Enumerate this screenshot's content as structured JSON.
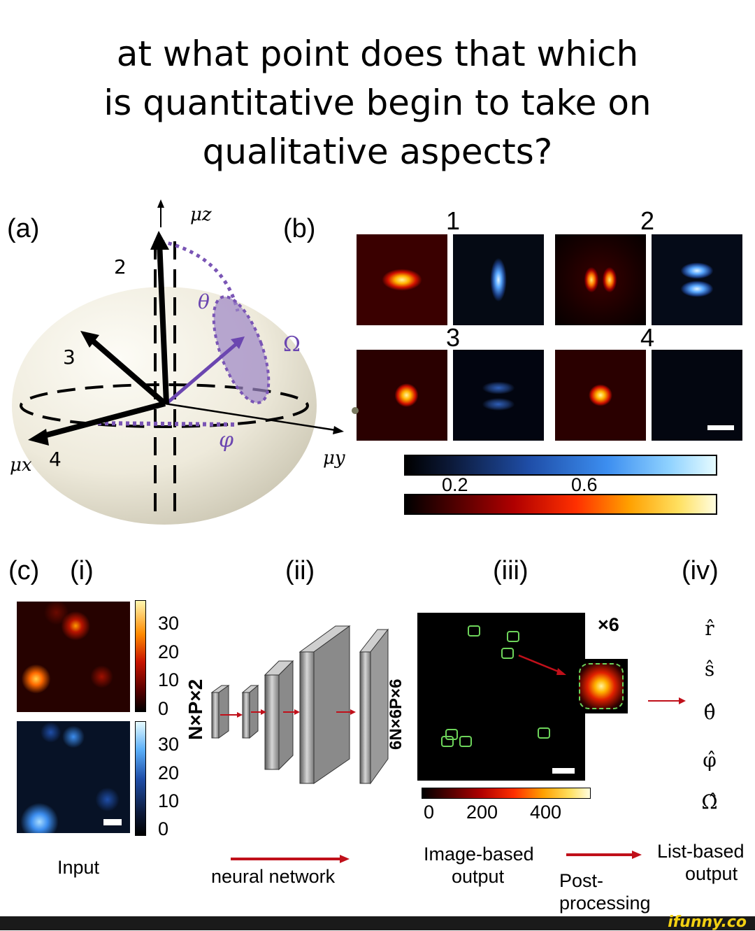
{
  "title_lines": [
    "at what point does that which",
    "is quantitative begin to take on",
    "qualitative aspects?"
  ],
  "panel_a": {
    "label": "(a)",
    "axes": {
      "z": "μz",
      "x": "μx",
      "y": "μy"
    },
    "numbers": [
      "2",
      "3",
      "4"
    ],
    "angles": {
      "theta": "θ",
      "omega": "Ω",
      "phi": "φ"
    }
  },
  "panel_b": {
    "label": "(b)",
    "groups": [
      "1",
      "2",
      "3",
      "4"
    ],
    "colorbar_ticks": [
      "0.2",
      "0.6"
    ]
  },
  "panel_c": {
    "labels": {
      "c": "(c)",
      "i": "(i)",
      "ii": "(ii)",
      "iii": "(iii)",
      "iv": "(iv)"
    },
    "input_scale_top": [
      "30",
      "20",
      "10",
      "0"
    ],
    "input_scale_bottom": [
      "30",
      "20",
      "10",
      "0"
    ],
    "layer_labels": {
      "first": "N×P×2",
      "last": "6N×6P×6"
    },
    "multiplier": "×6",
    "output_scale": [
      "0",
      "200",
      "400"
    ],
    "outputs": [
      "r̂",
      "ŝ",
      "θ̂",
      "φ̂",
      "Ω̂"
    ],
    "captions": {
      "input": "Input",
      "network": "neural network",
      "image_output_1": "Image-based",
      "image_output_2": "output",
      "post_1": "Post-",
      "post_2": "processing",
      "list_output_1": "List-based",
      "list_output_2": "output"
    }
  },
  "watermark": "ifunny.co"
}
